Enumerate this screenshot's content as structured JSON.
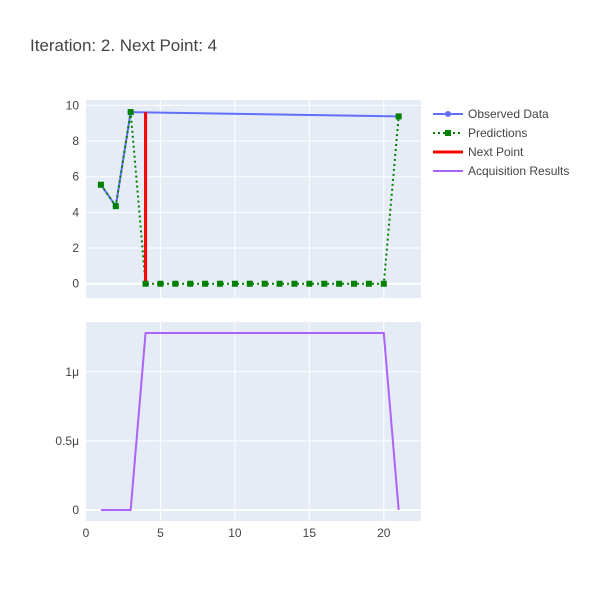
{
  "chart_data": {
    "title": "Iteration: 2. Next Point: 4",
    "type": "line",
    "legend": {
      "placement": "top-right",
      "entries": [
        {
          "name": "Observed Data",
          "color": "#636efa",
          "style": "lines+markers"
        },
        {
          "name": "Predictions",
          "color": "#008000",
          "style": "dotted lines+square markers"
        },
        {
          "name": "Next Point",
          "color": "#ff0000",
          "style": "line"
        },
        {
          "name": "Acquisition Results",
          "color": "#ab63fa",
          "style": "line"
        }
      ]
    },
    "x_axis": {
      "range": [
        0,
        22.5
      ],
      "ticks": [
        0,
        5,
        10,
        15,
        20
      ],
      "tick_labels": [
        "0",
        "5",
        "10",
        "15",
        "20"
      ]
    },
    "top_panel": {
      "y_range": [
        -0.8,
        10.3
      ],
      "y_ticks": [
        0,
        2,
        4,
        6,
        8,
        10
      ],
      "y_tick_labels": [
        "0",
        "2",
        "4",
        "6",
        "8",
        "10"
      ],
      "grid": true,
      "series": [
        {
          "name": "Observed Data",
          "x": [
            1,
            2,
            3,
            21
          ],
          "y": [
            5.55,
            4.35,
            9.62,
            9.38
          ]
        },
        {
          "name": "Predictions",
          "x": [
            1,
            2,
            3,
            4,
            5,
            6,
            7,
            8,
            9,
            10,
            11,
            12,
            13,
            14,
            15,
            16,
            17,
            18,
            19,
            20,
            21
          ],
          "y": [
            5.55,
            4.35,
            9.62,
            0,
            0,
            0,
            0,
            0,
            0,
            0,
            0,
            0,
            0,
            0,
            0,
            0,
            0,
            0,
            0,
            0,
            9.38
          ]
        },
        {
          "name": "Next Point",
          "x": [
            4,
            4
          ],
          "y": [
            0,
            9.62
          ]
        }
      ]
    },
    "bottom_panel": {
      "y_range": [
        -8e-08,
        1.36e-06
      ],
      "y_ticks": [
        0,
        5e-07,
        1e-06
      ],
      "y_tick_labels": [
        "0",
        "0.5μ",
        "1μ"
      ],
      "grid": true,
      "series": [
        {
          "name": "Acquisition Results",
          "x": [
            1,
            2,
            3,
            4,
            5,
            6,
            7,
            8,
            9,
            10,
            11,
            12,
            13,
            14,
            15,
            16,
            17,
            18,
            19,
            20,
            21
          ],
          "y": [
            0,
            0,
            0,
            1.28e-06,
            1.28e-06,
            1.28e-06,
            1.28e-06,
            1.28e-06,
            1.28e-06,
            1.28e-06,
            1.28e-06,
            1.28e-06,
            1.28e-06,
            1.28e-06,
            1.28e-06,
            1.28e-06,
            1.28e-06,
            1.28e-06,
            1.28e-06,
            1.28e-06,
            0
          ]
        }
      ]
    }
  }
}
